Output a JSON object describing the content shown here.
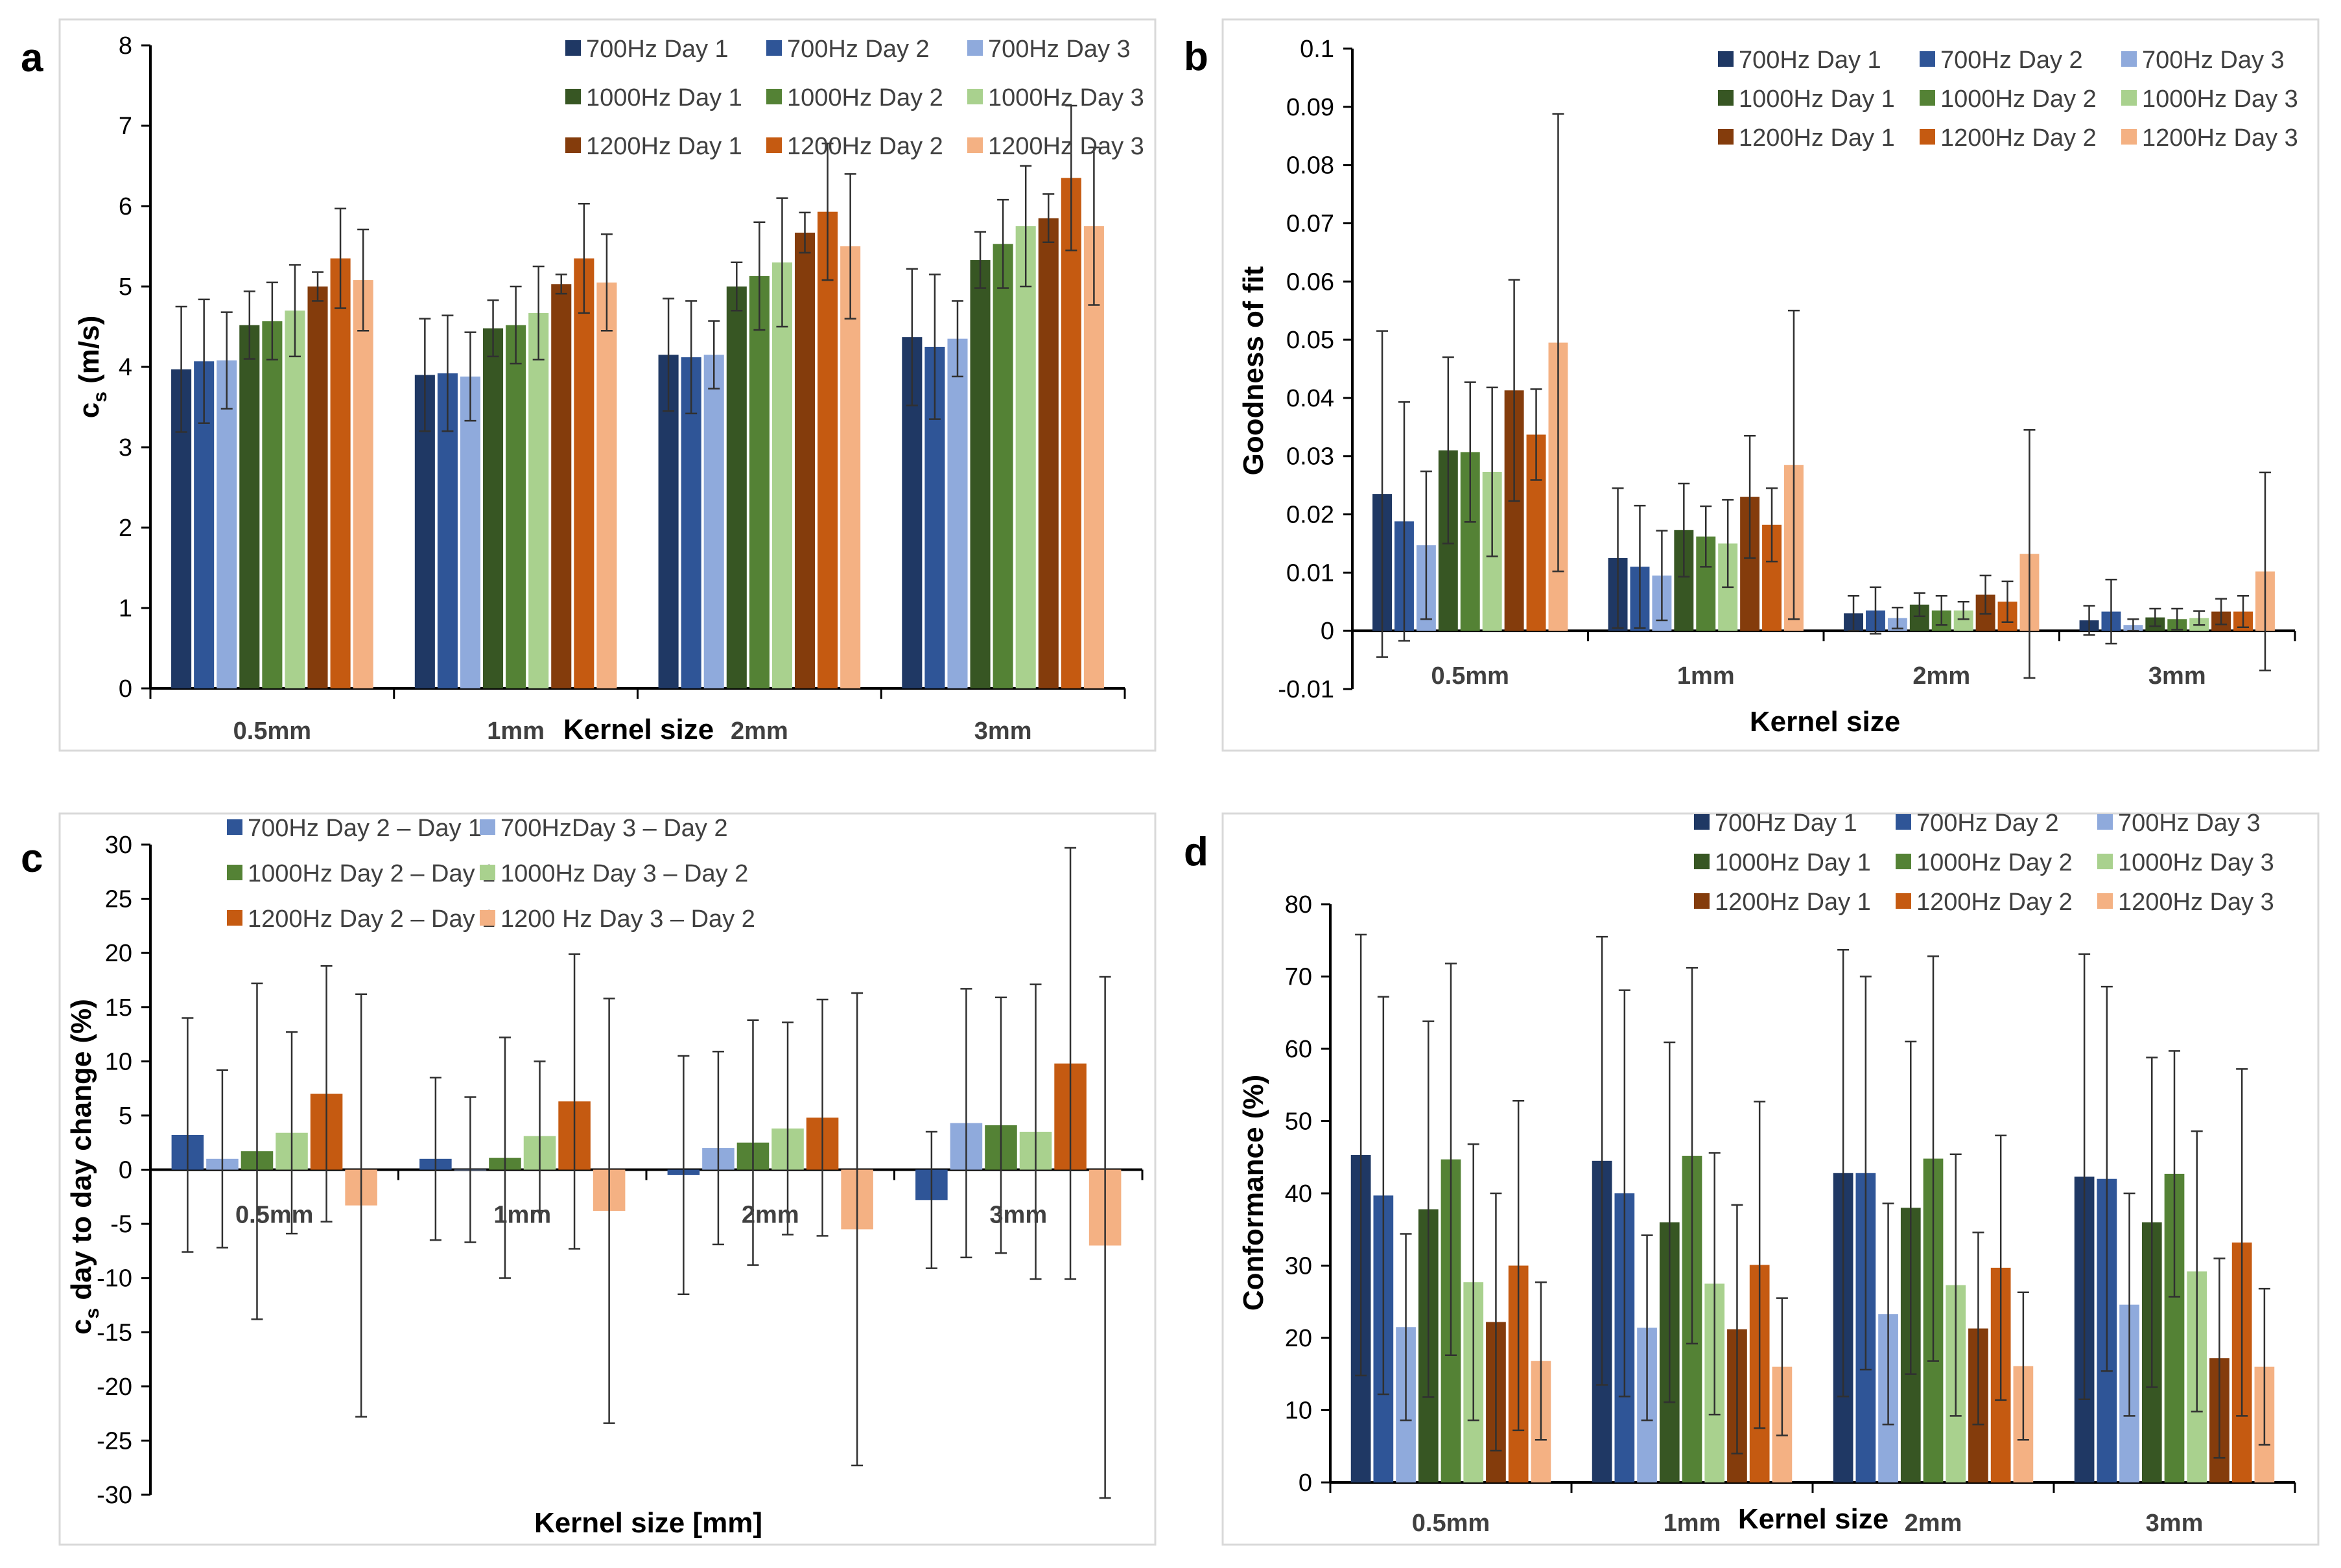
{
  "series_colors": {
    "700Hz Day 1": "#1f3864",
    "700Hz Day 2": "#2f5597",
    "700Hz Day 3": "#8faadc",
    "1000Hz Day 1": "#375623",
    "1000Hz Day 2": "#548235",
    "1000Hz Day 3": "#a9d18e",
    "1200Hz Day 1": "#843c0c",
    "1200Hz Day 2": "#c55a11",
    "1200Hz Day 3": "#f4b183"
  },
  "chart_data": [
    {
      "id": "a",
      "panel_letter": "a",
      "type": "bar",
      "xlabel": "Kernel size",
      "ylabel": "cs (m/s)",
      "ylabel_main": "c",
      "ylabel_sub": "s",
      "ylabel_rest": " (m/s)",
      "ylim": [
        0,
        8
      ],
      "yticks": [
        "0",
        "1",
        "2",
        "3",
        "4",
        "5",
        "6",
        "7",
        "8"
      ],
      "categories": [
        "0.5mm",
        "1mm",
        "2mm",
        "3mm"
      ],
      "legend_cols": 3,
      "series": [
        {
          "name": "700Hz Day 1",
          "color": "#1f3864",
          "values": [
            3.97,
            3.9,
            4.15,
            4.37
          ],
          "err": [
            0.78,
            0.7,
            0.7,
            0.85
          ]
        },
        {
          "name": "700Hz Day 2",
          "color": "#2f5597",
          "values": [
            4.07,
            3.92,
            4.12,
            4.25
          ],
          "err": [
            0.77,
            0.72,
            0.7,
            0.9
          ]
        },
        {
          "name": "700Hz Day 3",
          "color": "#8faadc",
          "values": [
            4.08,
            3.88,
            4.15,
            4.35
          ],
          "err": [
            0.6,
            0.55,
            0.42,
            0.47
          ]
        },
        {
          "name": "1000Hz Day 1",
          "color": "#375623",
          "values": [
            4.52,
            4.48,
            5.0,
            5.33
          ],
          "err": [
            0.42,
            0.35,
            0.3,
            0.35
          ]
        },
        {
          "name": "1000Hz Day 2",
          "color": "#548235",
          "values": [
            4.57,
            4.52,
            5.13,
            5.53
          ],
          "err": [
            0.48,
            0.48,
            0.67,
            0.55
          ]
        },
        {
          "name": "1000Hz Day 3",
          "color": "#a9d18e",
          "values": [
            4.7,
            4.67,
            5.3,
            5.75
          ],
          "err": [
            0.57,
            0.58,
            0.8,
            0.75
          ]
        },
        {
          "name": "1200Hz Day 1",
          "color": "#843c0c",
          "values": [
            5.0,
            5.03,
            5.67,
            5.85
          ],
          "err": [
            0.18,
            0.12,
            0.25,
            0.3
          ]
        },
        {
          "name": "1200Hz Day 2",
          "color": "#c55a11",
          "values": [
            5.35,
            5.35,
            5.93,
            6.35
          ],
          "err": [
            0.62,
            0.68,
            0.85,
            0.9
          ]
        },
        {
          "name": "1200Hz Day 3",
          "color": "#f4b183",
          "values": [
            5.08,
            5.05,
            5.5,
            5.75
          ],
          "err": [
            0.63,
            0.6,
            0.9,
            0.98
          ]
        }
      ]
    },
    {
      "id": "b",
      "panel_letter": "b",
      "type": "bar",
      "xlabel": "Kernel size",
      "ylabel": "Goodness of fit",
      "ylim": [
        -0.01,
        0.1
      ],
      "yticks": [
        "-0.01",
        "0",
        "0.01",
        "0.02",
        "0.03",
        "0.04",
        "0.05",
        "0.06",
        "0.07",
        "0.08",
        "0.09",
        "0.1"
      ],
      "categories": [
        "0.5mm",
        "1mm",
        "2mm",
        "3mm"
      ],
      "legend_cols": 3,
      "series": [
        {
          "name": "700Hz Day 1",
          "color": "#1f3864",
          "values": [
            0.0235,
            0.0125,
            0.003,
            0.0018
          ],
          "err": [
            0.028,
            0.012,
            0.003,
            0.0025
          ]
        },
        {
          "name": "700Hz Day 2",
          "color": "#2f5597",
          "values": [
            0.0188,
            0.011,
            0.0035,
            0.0033
          ],
          "err": [
            0.0205,
            0.0105,
            0.004,
            0.0055
          ]
        },
        {
          "name": "700Hz Day 3",
          "color": "#8faadc",
          "values": [
            0.0147,
            0.0095,
            0.0022,
            0.001
          ],
          "err": [
            0.0127,
            0.0077,
            0.0018,
            0.001
          ]
        },
        {
          "name": "1000Hz Day 1",
          "color": "#375623",
          "values": [
            0.031,
            0.0173,
            0.0045,
            0.0023
          ],
          "err": [
            0.016,
            0.008,
            0.002,
            0.0015
          ]
        },
        {
          "name": "1000Hz Day 2",
          "color": "#548235",
          "values": [
            0.0307,
            0.0162,
            0.0035,
            0.002
          ],
          "err": [
            0.012,
            0.0052,
            0.0025,
            0.0018
          ]
        },
        {
          "name": "1000Hz Day 3",
          "color": "#a9d18e",
          "values": [
            0.0273,
            0.015,
            0.0035,
            0.0022
          ],
          "err": [
            0.0145,
            0.0075,
            0.0015,
            0.0012
          ]
        },
        {
          "name": "1200Hz Day 1",
          "color": "#843c0c",
          "values": [
            0.0413,
            0.023,
            0.0062,
            0.0033
          ],
          "err": [
            0.019,
            0.0105,
            0.0033,
            0.0022
          ]
        },
        {
          "name": "1200Hz Day 2",
          "color": "#c55a11",
          "values": [
            0.0337,
            0.0182,
            0.005,
            0.0033
          ],
          "err": [
            0.0078,
            0.0063,
            0.0035,
            0.0027
          ]
        },
        {
          "name": "1200Hz Day 3",
          "color": "#f4b183",
          "values": [
            0.0495,
            0.0285,
            0.0132,
            0.0102
          ],
          "err": [
            0.0393,
            0.0265,
            0.0213,
            0.017
          ]
        }
      ]
    },
    {
      "id": "c",
      "panel_letter": "c",
      "type": "bar",
      "xlabel": "Kernel size [mm]",
      "ylabel": "cs day to day change (%)",
      "ylabel_main": "c",
      "ylabel_sub": "s",
      "ylabel_rest": " day to day change (%)",
      "ylim": [
        -30,
        30
      ],
      "yticks": [
        "-30",
        "-25",
        "-20",
        "-15",
        "-10",
        "-5",
        "0",
        "5",
        "10",
        "15",
        "20",
        "25",
        "30"
      ],
      "categories": [
        "0.5mm",
        "1mm",
        "2mm",
        "3mm"
      ],
      "category_labels_at_zero": true,
      "legend_cols": 2,
      "series": [
        {
          "name": "700Hz Day 2 – Day 1",
          "color": "#2f5597",
          "values": [
            3.2,
            1.0,
            -0.5,
            -2.8
          ],
          "err": [
            10.8,
            7.5,
            11.0,
            6.3
          ]
        },
        {
          "name": "700HzDay 3 – Day 2",
          "color": "#8faadc",
          "values": [
            1.0,
            0.0,
            2.0,
            4.3
          ],
          "err": [
            8.2,
            6.7,
            8.9,
            12.4
          ]
        },
        {
          "name": "1000Hz Day 2 – Day 1",
          "color": "#548235",
          "values": [
            1.7,
            1.1,
            2.5,
            4.1
          ],
          "err": [
            15.5,
            11.1,
            11.3,
            11.8
          ]
        },
        {
          "name": "1000Hz Day 3 – Day 2",
          "color": "#a9d18e",
          "values": [
            3.4,
            3.1,
            3.8,
            3.5
          ],
          "err": [
            9.3,
            6.9,
            9.8,
            13.6
          ]
        },
        {
          "name": "1200Hz Day 2 – Day 1",
          "color": "#c55a11",
          "values": [
            7.0,
            6.3,
            4.8,
            9.8
          ],
          "err": [
            11.8,
            13.6,
            10.9,
            19.9
          ]
        },
        {
          "name": "1200 Hz Day 3 – Day 2",
          "color": "#f4b183",
          "values": [
            -3.3,
            -3.8,
            -5.5,
            -7.0
          ],
          "err": [
            19.5,
            19.6,
            21.8,
            24.8
          ]
        }
      ]
    },
    {
      "id": "d",
      "panel_letter": "d",
      "type": "bar",
      "xlabel": "Kernel size",
      "ylabel": "Conformance  (%)",
      "ylim": [
        0,
        80
      ],
      "yticks": [
        "0",
        "10",
        "20",
        "30",
        "40",
        "50",
        "60",
        "70",
        "80"
      ],
      "categories": [
        "0.5mm",
        "1mm",
        "2mm",
        "3mm"
      ],
      "legend_cols": 3,
      "series": [
        {
          "name": "700Hz Day 1",
          "color": "#1f3864",
          "values": [
            45.3,
            44.5,
            42.8,
            42.3
          ],
          "err": [
            30.5,
            31.0,
            30.9,
            30.8
          ]
        },
        {
          "name": "700Hz Day 2",
          "color": "#2f5597",
          "values": [
            39.7,
            40.0,
            42.8,
            42.0
          ],
          "err": [
            27.5,
            28.1,
            27.2,
            26.6
          ]
        },
        {
          "name": "700Hz Day 3",
          "color": "#8faadc",
          "values": [
            21.5,
            21.4,
            23.3,
            24.6
          ],
          "err": [
            12.9,
            12.8,
            15.3,
            15.4
          ]
        },
        {
          "name": "1000Hz Day 1",
          "color": "#375623",
          "values": [
            37.8,
            36.0,
            38.0,
            36.0
          ],
          "err": [
            26.0,
            24.9,
            23.0,
            22.8
          ]
        },
        {
          "name": "1000Hz Day 2",
          "color": "#548235",
          "values": [
            44.7,
            45.2,
            44.8,
            42.7
          ],
          "err": [
            27.1,
            26.0,
            28.0,
            17.0
          ]
        },
        {
          "name": "1000Hz Day 3",
          "color": "#a9d18e",
          "values": [
            27.7,
            27.5,
            27.3,
            29.2
          ],
          "err": [
            19.1,
            18.1,
            18.1,
            19.4
          ]
        },
        {
          "name": "1200Hz Day 1",
          "color": "#843c0c",
          "values": [
            22.2,
            21.2,
            21.3,
            17.2
          ],
          "err": [
            17.8,
            17.2,
            13.3,
            13.8
          ]
        },
        {
          "name": "1200Hz Day 2",
          "color": "#c55a11",
          "values": [
            30.0,
            30.1,
            29.7,
            33.2
          ],
          "err": [
            22.8,
            22.6,
            18.3,
            24.0
          ]
        },
        {
          "name": "1200Hz Day 3",
          "color": "#f4b183",
          "values": [
            16.8,
            16.0,
            16.1,
            16.0
          ],
          "err": [
            10.9,
            9.5,
            10.2,
            10.8
          ]
        }
      ]
    }
  ]
}
